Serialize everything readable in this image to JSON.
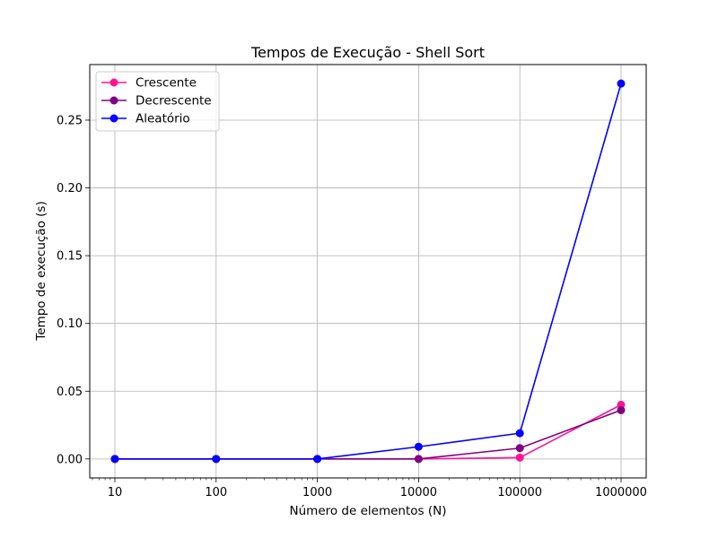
{
  "chart_data": {
    "type": "line",
    "title": "Tempos de Execução - Shell Sort",
    "xlabel": "Número de elementos (N)",
    "ylabel": "Tempo de execução (s)",
    "x_scale": "log",
    "x": [
      10,
      100,
      1000,
      10000,
      100000,
      1000000
    ],
    "x_tick_labels": [
      "10",
      "100",
      "1000",
      "10000",
      "100000",
      "1000000"
    ],
    "ylim": [
      -0.014,
      0.291
    ],
    "y_ticks": [
      0.0,
      0.05,
      0.1,
      0.15,
      0.2,
      0.25
    ],
    "y_tick_labels": [
      "0.00",
      "0.05",
      "0.10",
      "0.15",
      "0.20",
      "0.25"
    ],
    "grid": true,
    "legend_position": "top-left",
    "series": [
      {
        "name": "Crescente",
        "color": "#ff1493",
        "values": [
          0.0,
          0.0,
          0.0,
          0.0,
          0.001,
          0.04
        ]
      },
      {
        "name": "Decrescente",
        "color": "#800080",
        "values": [
          0.0,
          0.0,
          0.0,
          0.0,
          0.008,
          0.036
        ]
      },
      {
        "name": "Aleatório",
        "color": "#0000ff",
        "values": [
          0.0,
          0.0,
          0.0,
          0.009,
          0.019,
          0.277
        ]
      }
    ]
  }
}
